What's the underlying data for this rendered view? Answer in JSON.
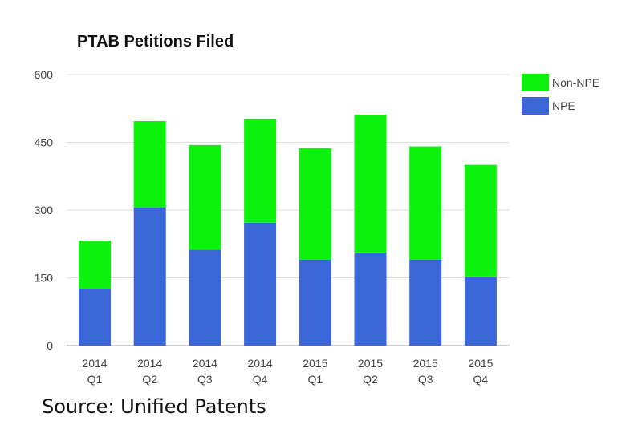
{
  "chart_data": {
    "type": "bar",
    "stacked": true,
    "title": "PTAB Petitions Filed",
    "categories": [
      [
        "2014",
        "Q1"
      ],
      [
        "2014",
        "Q2"
      ],
      [
        "2014",
        "Q3"
      ],
      [
        "2014",
        "Q4"
      ],
      [
        "2015",
        "Q1"
      ],
      [
        "2015",
        "Q2"
      ],
      [
        "2015",
        "Q3"
      ],
      [
        "2015",
        "Q4"
      ]
    ],
    "series": [
      {
        "name": "NPE",
        "color": "#3b66d8",
        "values": [
          126,
          306,
          212,
          272,
          190,
          206,
          190,
          153
        ]
      },
      {
        "name": "Non-NPE",
        "color": "#0df20d",
        "values": [
          106,
          191,
          232,
          229,
          247,
          305,
          251,
          247
        ]
      }
    ],
    "legend_order": [
      "Non-NPE",
      "NPE"
    ],
    "legend_position": "top-right",
    "yticks": [
      0,
      150,
      300,
      450,
      600
    ],
    "ylim": [
      0,
      600
    ],
    "grid": true,
    "xlabel": "",
    "ylabel": ""
  },
  "source": "Source: Unified Patents"
}
